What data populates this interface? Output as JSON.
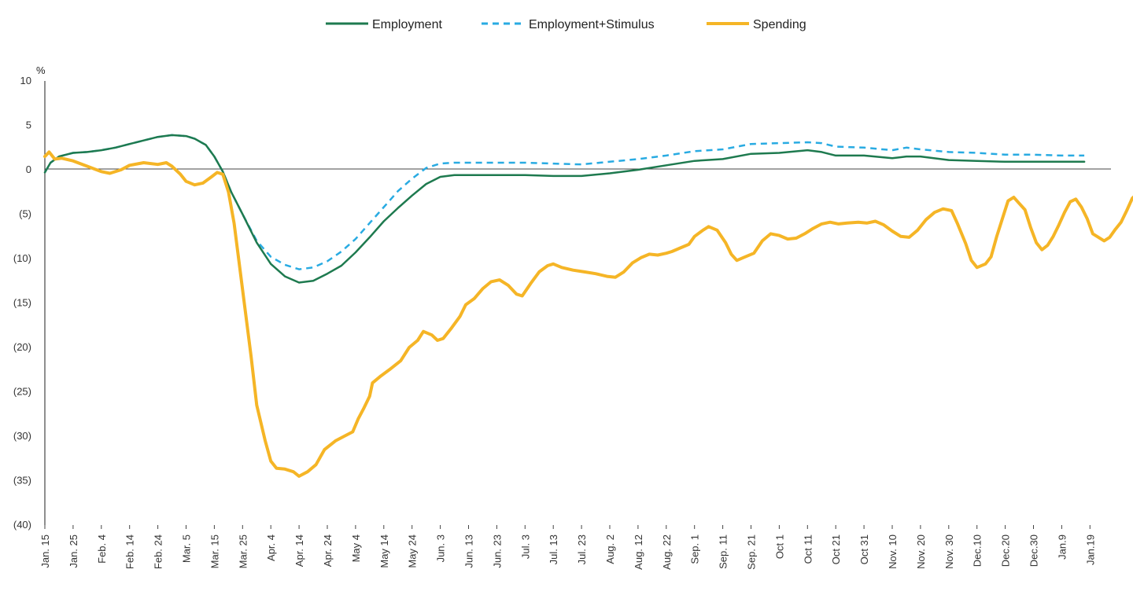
{
  "chart_data": {
    "type": "line",
    "ylabel": "%",
    "ylim": [
      -40,
      10
    ],
    "yticks": [
      10,
      5,
      0,
      -5,
      -10,
      -15,
      -20,
      -25,
      -30,
      -35,
      -40
    ],
    "ytick_labels": [
      "10",
      "5",
      "0",
      "(5)",
      "(10)",
      "(15)",
      "(20)",
      "(25)",
      "(30)",
      "(35)",
      "(40)"
    ],
    "x_categories": [
      "Jan. 15",
      "Jan. 25",
      "Feb. 4",
      "Feb. 14",
      "Feb. 24",
      "Mar. 5",
      "Mar. 15",
      "Mar. 25",
      "Apr. 4",
      "Apr. 14",
      "Apr. 24",
      "May 4",
      "May 14",
      "May 24",
      "Jun. 3",
      "Jun. 13",
      "Jun. 23",
      "Jul. 3",
      "Jul. 13",
      "Jul. 23",
      "Aug. 2",
      "Aug. 12",
      "Aug. 22",
      "Sep. 1",
      "Sep. 11",
      "Sep. 21",
      "Oct 1",
      "Oct 11",
      "Oct 21",
      "Oct 31",
      "Nov. 10",
      "Nov. 20",
      "Nov. 30",
      "Dec.10",
      "Dec.20",
      "Dec.30",
      "Jan.9",
      "Jan.19"
    ],
    "legend_position": "top-center",
    "grid": false,
    "series": [
      {
        "name": "Employment",
        "color": "#1e7a4f",
        "style": "solid",
        "points": [
          [
            0,
            -0.3
          ],
          [
            0.2,
            0.8
          ],
          [
            0.5,
            1.5
          ],
          [
            1,
            1.9
          ],
          [
            1.5,
            2.0
          ],
          [
            2,
            2.2
          ],
          [
            2.5,
            2.5
          ],
          [
            3,
            2.9
          ],
          [
            3.5,
            3.3
          ],
          [
            4,
            3.7
          ],
          [
            4.5,
            3.9
          ],
          [
            5,
            3.8
          ],
          [
            5.3,
            3.5
          ],
          [
            5.7,
            2.8
          ],
          [
            6,
            1.5
          ],
          [
            6.3,
            -0.2
          ],
          [
            6.6,
            -2.5
          ],
          [
            7,
            -5.0
          ],
          [
            7.5,
            -8.2
          ],
          [
            8,
            -10.6
          ],
          [
            8.5,
            -12.0
          ],
          [
            9,
            -12.7
          ],
          [
            9.5,
            -12.5
          ],
          [
            10,
            -11.7
          ],
          [
            10.5,
            -10.8
          ],
          [
            11,
            -9.3
          ],
          [
            11.5,
            -7.6
          ],
          [
            12,
            -5.8
          ],
          [
            12.5,
            -4.3
          ],
          [
            13,
            -2.9
          ],
          [
            13.5,
            -1.6
          ],
          [
            14,
            -0.8
          ],
          [
            14.5,
            -0.6
          ],
          [
            15,
            -0.6
          ],
          [
            16,
            -0.6
          ],
          [
            17,
            -0.6
          ],
          [
            18,
            -0.7
          ],
          [
            19,
            -0.7
          ],
          [
            20,
            -0.4
          ],
          [
            21,
            0.0
          ],
          [
            22,
            0.5
          ],
          [
            23,
            1.0
          ],
          [
            24,
            1.2
          ],
          [
            25,
            1.8
          ],
          [
            26,
            1.9
          ],
          [
            27,
            2.2
          ],
          [
            27.5,
            2.0
          ],
          [
            28,
            1.6
          ],
          [
            29,
            1.6
          ],
          [
            30,
            1.3
          ],
          [
            30.5,
            1.5
          ],
          [
            31,
            1.5
          ],
          [
            32,
            1.1
          ],
          [
            33,
            1.0
          ],
          [
            34,
            0.9
          ],
          [
            35,
            0.9
          ],
          [
            36,
            0.9
          ],
          [
            36.8,
            0.9
          ]
        ]
      },
      {
        "name": "Employment+Stimulus",
        "color": "#29abe2",
        "style": "dashed",
        "points": [
          [
            0,
            -0.3
          ],
          [
            0.2,
            0.8
          ],
          [
            0.5,
            1.5
          ],
          [
            1,
            1.9
          ],
          [
            1.5,
            2.0
          ],
          [
            2,
            2.2
          ],
          [
            2.5,
            2.5
          ],
          [
            3,
            2.9
          ],
          [
            3.5,
            3.3
          ],
          [
            4,
            3.7
          ],
          [
            4.5,
            3.9
          ],
          [
            5,
            3.8
          ],
          [
            5.3,
            3.5
          ],
          [
            5.7,
            2.8
          ],
          [
            6,
            1.5
          ],
          [
            6.3,
            -0.2
          ],
          [
            6.6,
            -2.5
          ],
          [
            7,
            -5.0
          ],
          [
            7.5,
            -8.0
          ],
          [
            8,
            -9.8
          ],
          [
            8.5,
            -10.7
          ],
          [
            9,
            -11.2
          ],
          [
            9.5,
            -11.0
          ],
          [
            10,
            -10.3
          ],
          [
            10.5,
            -9.2
          ],
          [
            11,
            -7.8
          ],
          [
            11.5,
            -6.0
          ],
          [
            12,
            -4.2
          ],
          [
            12.5,
            -2.4
          ],
          [
            13,
            -1.0
          ],
          [
            13.5,
            0.2
          ],
          [
            14,
            0.7
          ],
          [
            14.5,
            0.8
          ],
          [
            15,
            0.8
          ],
          [
            16,
            0.8
          ],
          [
            17,
            0.8
          ],
          [
            18,
            0.7
          ],
          [
            19,
            0.6
          ],
          [
            20,
            0.9
          ],
          [
            21,
            1.2
          ],
          [
            22,
            1.6
          ],
          [
            23,
            2.1
          ],
          [
            24,
            2.3
          ],
          [
            25,
            2.9
          ],
          [
            26,
            3.0
          ],
          [
            27,
            3.1
          ],
          [
            27.5,
            3.0
          ],
          [
            28,
            2.6
          ],
          [
            29,
            2.5
          ],
          [
            30,
            2.2
          ],
          [
            30.5,
            2.5
          ],
          [
            31,
            2.3
          ],
          [
            32,
            2.0
          ],
          [
            33,
            1.9
          ],
          [
            34,
            1.7
          ],
          [
            35,
            1.7
          ],
          [
            36,
            1.6
          ],
          [
            36.8,
            1.6
          ]
        ]
      },
      {
        "name": "Spending",
        "color": "#f5b526",
        "style": "solid",
        "points": [
          [
            0,
            1.5
          ],
          [
            0.15,
            2.0
          ],
          [
            0.35,
            1.2
          ],
          [
            0.6,
            1.3
          ],
          [
            1,
            1.0
          ],
          [
            1.5,
            0.4
          ],
          [
            2,
            -0.2
          ],
          [
            2.3,
            -0.4
          ],
          [
            2.7,
            0.0
          ],
          [
            3,
            0.5
          ],
          [
            3.5,
            0.8
          ],
          [
            4,
            0.6
          ],
          [
            4.3,
            0.8
          ],
          [
            4.5,
            0.4
          ],
          [
            4.8,
            -0.5
          ],
          [
            5,
            -1.3
          ],
          [
            5.3,
            -1.7
          ],
          [
            5.6,
            -1.5
          ],
          [
            5.9,
            -0.8
          ],
          [
            6.1,
            -0.3
          ],
          [
            6.3,
            -0.5
          ],
          [
            6.5,
            -2.5
          ],
          [
            6.7,
            -6.0
          ],
          [
            6.9,
            -11.0
          ],
          [
            7.1,
            -16.0
          ],
          [
            7.3,
            -21.0
          ],
          [
            7.5,
            -26.5
          ],
          [
            7.8,
            -30.5
          ],
          [
            8.0,
            -32.8
          ],
          [
            8.2,
            -33.6
          ],
          [
            8.5,
            -33.7
          ],
          [
            8.8,
            -34.0
          ],
          [
            9.0,
            -34.5
          ],
          [
            9.3,
            -34.0
          ],
          [
            9.6,
            -33.2
          ],
          [
            9.9,
            -31.5
          ],
          [
            10.3,
            -30.5
          ],
          [
            10.6,
            -30.0
          ],
          [
            10.9,
            -29.5
          ],
          [
            11.1,
            -28.0
          ],
          [
            11.3,
            -26.8
          ],
          [
            11.5,
            -25.5
          ],
          [
            11.6,
            -24.0
          ],
          [
            11.9,
            -23.2
          ],
          [
            12.2,
            -22.5
          ],
          [
            12.6,
            -21.5
          ],
          [
            12.9,
            -20.0
          ],
          [
            13.2,
            -19.2
          ],
          [
            13.4,
            -18.2
          ],
          [
            13.7,
            -18.6
          ],
          [
            13.9,
            -19.2
          ],
          [
            14.1,
            -19.0
          ],
          [
            14.4,
            -17.8
          ],
          [
            14.7,
            -16.5
          ],
          [
            14.9,
            -15.2
          ],
          [
            15.2,
            -14.5
          ],
          [
            15.5,
            -13.4
          ],
          [
            15.8,
            -12.6
          ],
          [
            16.1,
            -12.4
          ],
          [
            16.4,
            -13.0
          ],
          [
            16.7,
            -14.0
          ],
          [
            16.9,
            -14.2
          ],
          [
            17.2,
            -12.8
          ],
          [
            17.5,
            -11.5
          ],
          [
            17.8,
            -10.8
          ],
          [
            18.0,
            -10.6
          ],
          [
            18.3,
            -11.0
          ],
          [
            18.7,
            -11.3
          ],
          [
            19.1,
            -11.5
          ],
          [
            19.5,
            -11.7
          ],
          [
            19.9,
            -12.0
          ],
          [
            20.2,
            -12.1
          ],
          [
            20.5,
            -11.5
          ],
          [
            20.8,
            -10.5
          ],
          [
            21.1,
            -9.9
          ],
          [
            21.4,
            -9.5
          ],
          [
            21.7,
            -9.6
          ],
          [
            22.0,
            -9.4
          ],
          [
            22.2,
            -9.2
          ],
          [
            22.5,
            -8.8
          ],
          [
            22.8,
            -8.4
          ],
          [
            23.0,
            -7.5
          ],
          [
            23.3,
            -6.8
          ],
          [
            23.5,
            -6.4
          ],
          [
            23.8,
            -6.8
          ],
          [
            24.1,
            -8.2
          ],
          [
            24.3,
            -9.5
          ],
          [
            24.5,
            -10.2
          ],
          [
            24.8,
            -9.8
          ],
          [
            25.1,
            -9.4
          ],
          [
            25.4,
            -8.0
          ],
          [
            25.7,
            -7.2
          ],
          [
            26.0,
            -7.4
          ],
          [
            26.3,
            -7.8
          ],
          [
            26.6,
            -7.7
          ],
          [
            26.9,
            -7.2
          ],
          [
            27.2,
            -6.6
          ],
          [
            27.5,
            -6.1
          ],
          [
            27.8,
            -5.9
          ],
          [
            28.1,
            -6.1
          ],
          [
            28.4,
            -6.0
          ],
          [
            28.8,
            -5.9
          ],
          [
            29.1,
            -6.0
          ],
          [
            29.4,
            -5.8
          ],
          [
            29.7,
            -6.2
          ],
          [
            30.0,
            -6.9
          ],
          [
            30.3,
            -7.5
          ],
          [
            30.6,
            -7.6
          ],
          [
            30.9,
            -6.8
          ],
          [
            31.2,
            -5.6
          ],
          [
            31.5,
            -4.8
          ],
          [
            31.8,
            -4.4
          ],
          [
            32.1,
            -4.6
          ],
          [
            32.3,
            -6.0
          ],
          [
            32.6,
            -8.3
          ],
          [
            32.8,
            -10.2
          ],
          [
            33.0,
            -11.0
          ],
          [
            33.3,
            -10.6
          ],
          [
            33.5,
            -9.8
          ],
          [
            33.7,
            -7.5
          ],
          [
            33.9,
            -5.5
          ],
          [
            34.1,
            -3.5
          ],
          [
            34.3,
            -3.1
          ],
          [
            34.5,
            -3.8
          ],
          [
            34.7,
            -4.5
          ],
          [
            34.9,
            -6.5
          ],
          [
            35.1,
            -8.2
          ],
          [
            35.3,
            -9.0
          ],
          [
            35.5,
            -8.5
          ],
          [
            35.7,
            -7.5
          ],
          [
            35.9,
            -6.2
          ],
          [
            36.1,
            -4.8
          ],
          [
            36.3,
            -3.6
          ],
          [
            36.5,
            -3.3
          ],
          [
            36.7,
            -4.2
          ],
          [
            36.9,
            -5.5
          ],
          [
            37.1,
            -7.2
          ],
          [
            37.3,
            -7.6
          ],
          [
            37.5,
            -8.0
          ],
          [
            37.7,
            -7.6
          ],
          [
            37.9,
            -6.7
          ],
          [
            38.1,
            -5.9
          ],
          [
            38.3,
            -4.6
          ],
          [
            38.5,
            -3.2
          ],
          [
            38.7,
            -2.6
          ],
          [
            38.9,
            -2.1
          ],
          [
            39.1,
            -1.9
          ],
          [
            39.3,
            -1.6
          ],
          [
            39.5,
            -1.7
          ]
        ]
      }
    ]
  }
}
